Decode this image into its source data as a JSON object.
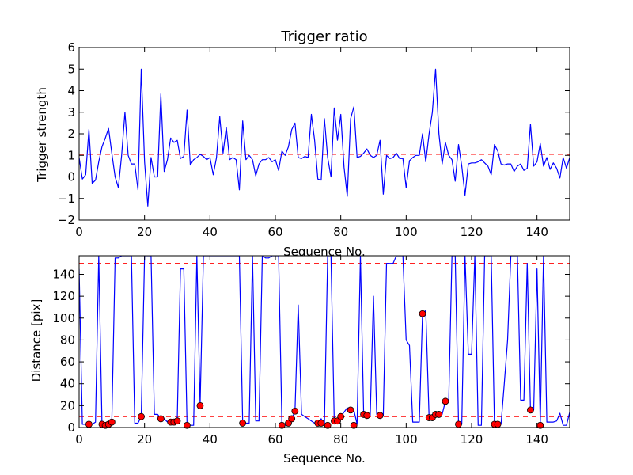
{
  "chart_data": [
    {
      "type": "line",
      "title": "Trigger ratio",
      "xlabel": "Sequence No.",
      "ylabel": "Trigger strength",
      "xlim": [
        0,
        150
      ],
      "ylim": [
        -2,
        6
      ],
      "xticks": [
        0,
        20,
        40,
        60,
        80,
        100,
        120,
        140
      ],
      "yticks": [
        -2,
        -1,
        0,
        1,
        2,
        3,
        4,
        5,
        6
      ],
      "threshold": 1.05,
      "line_color": "#0000ff",
      "threshold_color": "#ff0000",
      "series": [
        {
          "x": [
            0,
            1,
            2,
            3,
            4,
            5,
            6,
            7,
            8,
            9,
            10,
            11,
            12,
            13,
            14,
            15,
            16,
            17,
            18,
            19,
            20,
            21,
            22,
            23,
            24,
            25,
            26,
            27,
            28,
            29,
            30,
            31,
            32,
            33,
            34,
            35,
            36,
            37,
            38,
            39,
            40,
            41,
            42,
            43,
            44,
            45,
            46,
            47,
            48,
            49,
            50,
            51,
            52,
            53,
            54,
            55,
            56,
            57,
            58,
            59,
            60,
            61,
            62,
            63,
            64,
            65,
            66,
            67,
            68,
            69,
            70,
            71,
            72,
            73,
            74,
            75,
            76,
            77,
            78,
            79,
            80,
            81,
            82,
            83,
            84,
            85,
            86,
            87,
            88,
            89,
            90,
            91,
            92,
            93,
            94,
            95,
            96,
            97,
            98,
            99,
            100,
            101,
            102,
            103,
            104,
            105,
            106,
            107,
            108,
            109,
            110,
            111,
            112,
            113,
            114,
            115,
            116,
            117,
            118,
            119,
            120,
            121,
            122,
            123,
            124,
            125,
            126,
            127,
            128,
            129,
            130,
            131,
            132,
            133,
            134,
            135,
            136,
            137,
            138,
            139,
            140,
            141,
            142,
            143,
            144,
            145,
            146,
            147,
            148,
            149,
            150
          ],
          "y": [
            0.9,
            -0.1,
            0.1,
            2.2,
            -0.3,
            -0.15,
            0.7,
            1.4,
            1.8,
            2.25,
            1.1,
            0.0,
            -0.5,
            1.0,
            3.0,
            1.0,
            0.6,
            0.6,
            -0.6,
            5.0,
            0.7,
            -1.35,
            0.9,
            0.0,
            0.0,
            3.85,
            0.25,
            0.8,
            1.8,
            1.6,
            1.7,
            0.85,
            0.95,
            3.1,
            0.55,
            0.8,
            0.9,
            1.05,
            0.95,
            0.8,
            0.9,
            0.1,
            0.9,
            2.8,
            1.1,
            2.3,
            0.8,
            0.9,
            0.8,
            -0.6,
            2.6,
            0.8,
            1.0,
            0.8,
            0.05,
            0.6,
            0.8,
            0.8,
            0.9,
            0.7,
            0.8,
            0.3,
            1.2,
            1.0,
            1.4,
            2.2,
            2.5,
            0.9,
            0.85,
            0.95,
            0.9,
            2.9,
            1.7,
            -0.1,
            -0.15,
            2.7,
            0.9,
            0.0,
            3.2,
            1.7,
            2.9,
            0.45,
            -0.9,
            2.7,
            3.25,
            0.9,
            0.95,
            1.1,
            1.3,
            1.0,
            0.9,
            1.0,
            1.7,
            -0.8,
            1.0,
            0.85,
            0.9,
            1.1,
            0.85,
            0.85,
            -0.5,
            0.75,
            0.9,
            1.0,
            1.0,
            2.0,
            0.7,
            2.0,
            3.0,
            5.0,
            2.0,
            0.6,
            1.6,
            1.0,
            0.8,
            -0.2,
            1.5,
            0.5,
            -0.85,
            0.6,
            0.65,
            0.65,
            0.7,
            0.8,
            0.65,
            0.5,
            0.1,
            1.5,
            1.2,
            0.6,
            0.55,
            0.6,
            0.6,
            0.25,
            0.5,
            0.6,
            0.3,
            0.4,
            2.45,
            0.5,
            0.7,
            1.55,
            0.5,
            0.9,
            0.35,
            0.65,
            0.4,
            -0.05,
            0.9,
            0.4,
            0.9
          ]
        }
      ]
    },
    {
      "type": "line",
      "title": "",
      "xlabel": "Sequence No.",
      "ylabel": "Distance [pix]",
      "xlim": [
        0,
        150
      ],
      "ylim": [
        0,
        157
      ],
      "xticks": [
        0,
        20,
        40,
        60,
        80,
        100,
        120,
        140
      ],
      "yticks": [
        0,
        20,
        40,
        60,
        80,
        100,
        120,
        140
      ],
      "thresholds": [
        10,
        150
      ],
      "line_color": "#0000ff",
      "threshold_color": "#ff0000",
      "marker_color": "#ff0000",
      "series": [
        {
          "x": [
            0,
            1,
            2,
            3,
            4,
            5,
            6,
            7,
            8,
            9,
            10,
            11,
            12,
            13,
            14,
            15,
            16,
            17,
            18,
            19,
            20,
            21,
            22,
            23,
            24,
            25,
            26,
            27,
            28,
            29,
            30,
            31,
            32,
            33,
            34,
            35,
            36,
            37,
            38,
            39,
            40,
            41,
            42,
            43,
            44,
            45,
            46,
            47,
            48,
            49,
            50,
            51,
            52,
            53,
            54,
            55,
            56,
            57,
            58,
            59,
            60,
            61,
            62,
            63,
            64,
            65,
            66,
            67,
            68,
            69,
            70,
            71,
            72,
            73,
            74,
            75,
            76,
            77,
            78,
            79,
            80,
            81,
            82,
            83,
            84,
            85,
            86,
            87,
            88,
            89,
            90,
            91,
            92,
            93,
            94,
            95,
            96,
            97,
            98,
            99,
            100,
            101,
            102,
            103,
            104,
            105,
            106,
            107,
            108,
            109,
            110,
            111,
            112,
            113,
            114,
            115,
            116,
            117,
            118,
            119,
            120,
            121,
            122,
            123,
            124,
            125,
            126,
            127,
            128,
            129,
            130,
            131,
            132,
            133,
            134,
            135,
            136,
            137,
            138,
            139,
            140,
            141,
            142,
            143,
            144,
            145,
            146,
            147,
            148,
            149,
            150
          ],
          "y": [
            145,
            3,
            3,
            3,
            3,
            5,
            157,
            3,
            3,
            3,
            5,
            155,
            155,
            157,
            157,
            157,
            157,
            4,
            4,
            10,
            157,
            157,
            157,
            12,
            12,
            8,
            8,
            5,
            5,
            6,
            7,
            145,
            145,
            2,
            2,
            2,
            157,
            20,
            157,
            157,
            157,
            157,
            157,
            157,
            157,
            157,
            157,
            157,
            157,
            157,
            4,
            4,
            4,
            157,
            6,
            6,
            157,
            155,
            155,
            157,
            157,
            157,
            2,
            2,
            4,
            8,
            15,
            112,
            12,
            10,
            8,
            6,
            4,
            4,
            8,
            2,
            157,
            157,
            6,
            8,
            10,
            14,
            18,
            16,
            16,
            3,
            157,
            12,
            11,
            11,
            120,
            12,
            11,
            11,
            150,
            150,
            150,
            157,
            157,
            157,
            80,
            75,
            5,
            5,
            5,
            104,
            107,
            9,
            9,
            12,
            12,
            12,
            24,
            24,
            157,
            157,
            3,
            3,
            157,
            67,
            67,
            157,
            2,
            2,
            157,
            157,
            157,
            2,
            2,
            3,
            40,
            80,
            157,
            157,
            157,
            25,
            25,
            150,
            16,
            16,
            145,
            3,
            157,
            5,
            5,
            5,
            6,
            13,
            2,
            2,
            14
          ]
        },
        {
          "name": "",
          "x": [
            3,
            7,
            8,
            9,
            10,
            19,
            25,
            28,
            29,
            30,
            33,
            37,
            50,
            62,
            64,
            65,
            66,
            73,
            74,
            76,
            78,
            79,
            80,
            83,
            84,
            87,
            88,
            92,
            105,
            107,
            108,
            109,
            110,
            112,
            116,
            127,
            128,
            138,
            141
          ],
          "y": [
            3,
            3,
            2,
            3,
            5,
            10,
            8,
            5,
            5,
            6,
            2,
            20,
            4,
            2,
            4,
            8,
            15,
            4,
            4,
            2,
            6,
            6,
            10,
            16,
            2,
            12,
            11,
            11,
            104,
            9,
            9,
            12,
            12,
            24,
            3,
            3,
            3,
            16,
            2
          ]
        }
      ]
    }
  ]
}
